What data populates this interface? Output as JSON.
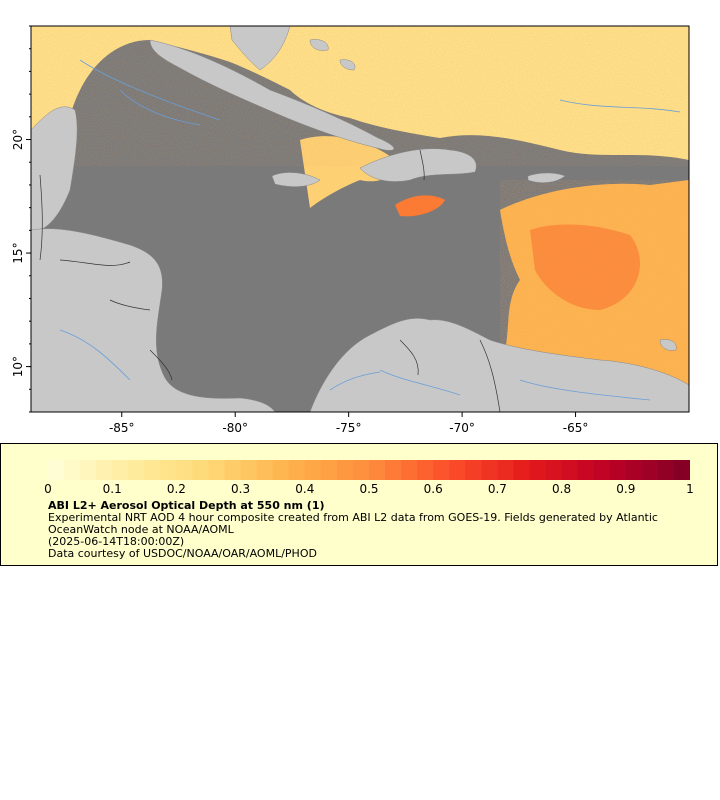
{
  "map": {
    "lon_ticks": [
      {
        "value": -85,
        "label": "-85°"
      },
      {
        "value": -80,
        "label": "-80°"
      },
      {
        "value": -75,
        "label": "-75°"
      },
      {
        "value": -70,
        "label": "-70°"
      },
      {
        "value": -65,
        "label": "-65°"
      }
    ],
    "lat_ticks": [
      {
        "value": 10,
        "label": "10°"
      },
      {
        "value": 15,
        "label": "15°"
      },
      {
        "value": 20,
        "label": "20°"
      }
    ],
    "lon_range": [
      -89,
      -60
    ],
    "lat_range": [
      8,
      25
    ],
    "colors": {
      "ocean_nodata": "#7a7a7a",
      "land": "#c8c8c8",
      "river": "#6a9fd8",
      "border": "#222222"
    }
  },
  "colorbar": {
    "labels": [
      "0",
      "0.1",
      "0.2",
      "0.3",
      "0.4",
      "0.5",
      "0.6",
      "0.7",
      "0.8",
      "0.9",
      "1"
    ],
    "range": [
      0,
      1
    ],
    "colors": [
      "#ffffd9",
      "#ffeda0",
      "#fed976",
      "#feb24c",
      "#fd8d3c",
      "#fc4e2a",
      "#e31a1c",
      "#bd0026",
      "#800026"
    ]
  },
  "legend": {
    "title": "ABI L2+ Aerosol Optical Depth at 550 nm (1)",
    "description": "Experimental NRT AOD 4 hour composite created from ABI L2 data from GOES-19. Fields generated by Atlantic OceanWatch node at NOAA/AOML",
    "time": "(2025-06-14T18:00:00Z)",
    "credit": "Data courtesy of USDOC/NOAA/OAR/AOML/PHOD"
  }
}
